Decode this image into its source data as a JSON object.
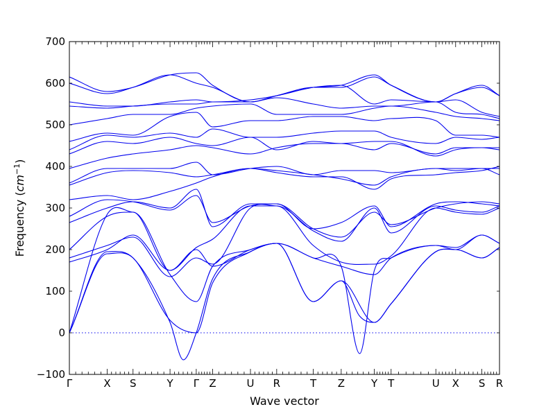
{
  "chart_data": {
    "type": "line",
    "title": "",
    "xlabel": "Wave vector",
    "ylabel": "Frequency",
    "ylabel_unit": "cm",
    "ylabel_unit_exponent": "−1",
    "ylim": [
      -100,
      700
    ],
    "yticks": [
      -100,
      0,
      100,
      200,
      300,
      400,
      500,
      600,
      700
    ],
    "xlim": [
      0,
      100
    ],
    "grid": false,
    "legend": "none",
    "line_color": "#0000ee",
    "zero_line": 0,
    "high_symmetry_points": [
      {
        "label": "Γ",
        "x": 0
      },
      {
        "label": "X",
        "x": 8.8
      },
      {
        "label": "S",
        "x": 14.8
      },
      {
        "label": "Y",
        "x": 23.4
      },
      {
        "label": "Γ",
        "x": 29.5
      },
      {
        "label": "Z",
        "x": 33.3
      },
      {
        "label": "U",
        "x": 42.1
      },
      {
        "label": "R",
        "x": 48.2
      },
      {
        "label": "T",
        "x": 56.7
      },
      {
        "label": "Z",
        "x": 63.2
      },
      {
        "label": "Y",
        "x": 70.9
      },
      {
        "label": "T",
        "x": 74.8
      },
      {
        "label": "U",
        "x": 85.2
      },
      {
        "label": "X",
        "x": 89.8
      },
      {
        "label": "S",
        "x": 95.9
      },
      {
        "label": "R",
        "x": 100
      }
    ],
    "series": [
      {
        "x": [
          0,
          8.8,
          14.8,
          23.4,
          29.5,
          33.3,
          42.1,
          48.2,
          56.7,
          63.2,
          70.9,
          74.8,
          85.2,
          89.8,
          95.9,
          100
        ],
        "values": [
          0,
          190,
          180,
          30,
          0,
          120,
          195,
          215,
          75,
          125,
          25,
          70,
          195,
          200,
          180,
          205
        ]
      },
      {
        "x": [
          0,
          8.8,
          14.8,
          23.4,
          26.5,
          29.5,
          33.3,
          42.1,
          48.2,
          56.7,
          63.2,
          67.5,
          70.9,
          74.8,
          85.2,
          89.8,
          95.9,
          100
        ],
        "values": [
          0,
          195,
          180,
          25,
          -65,
          0,
          130,
          195,
          215,
          75,
          125,
          40,
          25,
          70,
          195,
          200,
          180,
          205
        ]
      },
      {
        "x": [
          0,
          8.8,
          14.8,
          23.4,
          29.5,
          33.3,
          42.1,
          48.2,
          56.7,
          63.2,
          67.5,
          70.9,
          74.8,
          85.2,
          89.8,
          95.9,
          100
        ],
        "values": [
          0,
          285,
          290,
          140,
          75,
          160,
          200,
          215,
          180,
          160,
          -50,
          150,
          180,
          210,
          200,
          235,
          215
        ]
      },
      {
        "x": [
          0,
          8.8,
          14.8,
          23.4,
          29.5,
          33.3,
          42.1,
          48.2,
          56.7,
          63.2,
          70.9,
          74.8,
          85.2,
          89.8,
          95.9,
          100
        ],
        "values": [
          170,
          200,
          235,
          150,
          200,
          160,
          200,
          215,
          180,
          160,
          140,
          180,
          210,
          205,
          235,
          215
        ]
      },
      {
        "x": [
          0,
          8.8,
          14.8,
          23.4,
          29.5,
          33.3,
          42.1,
          48.2,
          56.7,
          63.2,
          70.9,
          74.8,
          85.2,
          89.8,
          95.9,
          100
        ],
        "values": [
          180,
          210,
          230,
          135,
          180,
          165,
          300,
          305,
          210,
          170,
          165,
          185,
          300,
          290,
          285,
          300
        ]
      },
      {
        "x": [
          0,
          8.8,
          14.8,
          23.4,
          29.5,
          33.3,
          42.1,
          48.2,
          56.7,
          63.2,
          70.9,
          74.8,
          85.2,
          89.8,
          95.9,
          100
        ],
        "values": [
          200,
          280,
          290,
          150,
          205,
          225,
          305,
          305,
          245,
          220,
          300,
          240,
          305,
          295,
          290,
          305
        ]
      },
      {
        "x": [
          0,
          8.8,
          14.8,
          23.4,
          29.5,
          33.3,
          42.1,
          48.2,
          56.7,
          63.2,
          70.9,
          74.8,
          85.2,
          89.8,
          95.9,
          100
        ],
        "values": [
          265,
          300,
          315,
          300,
          345,
          255,
          310,
          310,
          250,
          265,
          305,
          255,
          310,
          315,
          310,
          305
        ]
      },
      {
        "x": [
          0,
          8.8,
          14.8,
          23.4,
          29.5,
          33.3,
          42.1,
          48.2,
          56.7,
          63.2,
          70.9,
          74.8,
          85.2,
          89.8,
          95.9,
          100
        ],
        "values": [
          280,
          320,
          315,
          295,
          330,
          265,
          305,
          310,
          250,
          230,
          290,
          260,
          300,
          310,
          315,
          310
        ]
      },
      {
        "x": [
          0,
          8.8,
          14.8,
          23.4,
          29.5,
          33.3,
          42.1,
          48.2,
          56.7,
          63.2,
          70.9,
          74.8,
          85.2,
          89.8,
          95.9,
          100
        ],
        "values": [
          320,
          330,
          320,
          340,
          360,
          375,
          395,
          385,
          375,
          375,
          345,
          370,
          380,
          385,
          390,
          400
        ]
      },
      {
        "x": [
          0,
          8.8,
          14.8,
          23.4,
          29.5,
          33.3,
          42.1,
          48.2,
          56.7,
          63.2,
          70.9,
          74.8,
          85.2,
          89.8,
          95.9,
          100
        ],
        "values": [
          355,
          385,
          390,
          385,
          375,
          380,
          395,
          390,
          380,
          370,
          355,
          375,
          395,
          395,
          395,
          395
        ]
      },
      {
        "x": [
          0,
          8.8,
          14.8,
          23.4,
          29.5,
          33.3,
          42.1,
          48.2,
          56.7,
          63.2,
          70.9,
          74.8,
          85.2,
          89.8,
          95.9,
          100
        ],
        "values": [
          360,
          395,
          395,
          395,
          410,
          380,
          395,
          400,
          380,
          390,
          390,
          385,
          395,
          390,
          395,
          380
        ]
      },
      {
        "x": [
          0,
          8.8,
          14.8,
          23.4,
          29.5,
          33.3,
          42.1,
          48.2,
          56.7,
          63.2,
          70.9,
          74.8,
          85.2,
          89.8,
          95.9,
          100
        ],
        "values": [
          395,
          420,
          430,
          440,
          450,
          445,
          430,
          445,
          455,
          455,
          440,
          455,
          430,
          445,
          445,
          440
        ]
      },
      {
        "x": [
          0,
          8.8,
          14.8,
          23.4,
          29.5,
          33.3,
          42.1,
          48.2,
          56.7,
          63.2,
          70.9,
          74.8,
          85.2,
          89.8,
          95.9,
          100
        ],
        "values": [
          430,
          460,
          455,
          470,
          455,
          450,
          470,
          440,
          460,
          455,
          460,
          460,
          425,
          440,
          445,
          445
        ]
      },
      {
        "x": [
          0,
          8.8,
          14.8,
          23.4,
          29.5,
          33.3,
          42.1,
          48.2,
          56.7,
          63.2,
          70.9,
          74.8,
          85.2,
          89.8,
          95.9,
          100
        ],
        "values": [
          440,
          475,
          470,
          480,
          470,
          490,
          470,
          470,
          480,
          485,
          485,
          470,
          455,
          470,
          465,
          470
        ]
      },
      {
        "x": [
          0,
          8.8,
          14.8,
          23.4,
          29.5,
          33.3,
          42.1,
          48.2,
          56.7,
          63.2,
          70.9,
          74.8,
          85.2,
          89.8,
          95.9,
          100
        ],
        "values": [
          460,
          480,
          475,
          520,
          530,
          495,
          510,
          510,
          520,
          520,
          510,
          515,
          510,
          475,
          475,
          470
        ]
      },
      {
        "x": [
          0,
          8.8,
          14.8,
          23.4,
          29.5,
          33.3,
          42.1,
          48.2,
          56.7,
          63.2,
          70.9,
          74.8,
          85.2,
          89.8,
          95.9,
          100
        ],
        "values": [
          500,
          515,
          525,
          525,
          540,
          545,
          550,
          525,
          525,
          525,
          540,
          545,
          530,
          520,
          515,
          510
        ]
      },
      {
        "x": [
          0,
          8.8,
          14.8,
          23.4,
          29.5,
          33.3,
          42.1,
          48.2,
          56.7,
          63.2,
          70.9,
          74.8,
          85.2,
          89.8,
          95.9,
          100
        ],
        "values": [
          545,
          540,
          545,
          550,
          550,
          555,
          555,
          565,
          550,
          540,
          545,
          545,
          555,
          530,
          525,
          515
        ]
      },
      {
        "x": [
          0,
          8.8,
          14.8,
          23.4,
          29.5,
          33.3,
          42.1,
          48.2,
          56.7,
          63.2,
          70.9,
          74.8,
          85.2,
          89.8,
          95.9,
          100
        ],
        "values": [
          555,
          545,
          545,
          555,
          560,
          555,
          560,
          570,
          590,
          595,
          550,
          560,
          555,
          560,
          530,
          520
        ]
      },
      {
        "x": [
          0,
          8.8,
          14.8,
          23.4,
          29.5,
          33.3,
          42.1,
          48.2,
          56.7,
          63.2,
          70.9,
          74.8,
          85.2,
          89.8,
          95.9,
          100
        ],
        "values": [
          600,
          575,
          590,
          620,
          600,
          590,
          555,
          570,
          590,
          590,
          615,
          595,
          555,
          575,
          590,
          570
        ]
      },
      {
        "x": [
          0,
          8.8,
          14.8,
          23.4,
          29.5,
          33.3,
          42.1,
          48.2,
          56.7,
          63.2,
          70.9,
          74.8,
          85.2,
          89.8,
          95.9,
          100
        ],
        "values": [
          615,
          580,
          590,
          620,
          625,
          595,
          555,
          570,
          590,
          595,
          620,
          595,
          555,
          575,
          595,
          570
        ]
      }
    ]
  }
}
